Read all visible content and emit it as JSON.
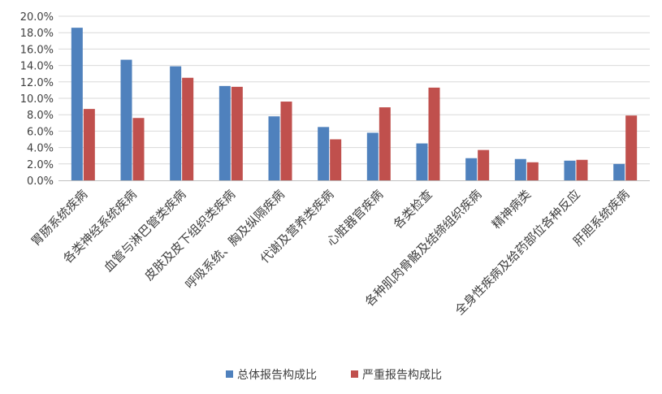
{
  "chart_data": {
    "type": "bar",
    "categories": [
      "胃肠系统疾病",
      "各类神经系统疾病",
      "血管与淋巴管类疾病",
      "皮肤及皮下组织类疾病",
      "呼吸系统、胸及纵隔疾病",
      "代谢及营养类疾病",
      "心脏器官疾病",
      "各类检查",
      "各种肌肉骨骼及结缔组织疾病",
      "精神病类",
      "全身性疾病及给药部位各种反应",
      "肝胆系统疾病"
    ],
    "series": [
      {
        "name": "总体报告构成比",
        "color": "#4F81BD",
        "values": [
          18.6,
          14.7,
          13.9,
          11.5,
          7.8,
          6.5,
          5.8,
          4.5,
          2.7,
          2.6,
          2.4,
          2.0
        ]
      },
      {
        "name": "严重报告构成比",
        "color": "#C0504D",
        "values": [
          8.7,
          7.6,
          12.5,
          11.4,
          9.6,
          5.0,
          8.9,
          11.3,
          3.7,
          2.2,
          2.5,
          7.9
        ]
      }
    ],
    "ylim": [
      0,
      20
    ],
    "yticks": [
      "0.0%",
      "2.0%",
      "4.0%",
      "6.0%",
      "8.0%",
      "10.0%",
      "12.0%",
      "14.0%",
      "16.0%",
      "18.0%",
      "20.0%"
    ],
    "ytick_values": [
      0,
      2,
      4,
      6,
      8,
      10,
      12,
      14,
      16,
      18,
      20
    ],
    "title": "",
    "xlabel": "",
    "ylabel": "",
    "grid": true,
    "legend_position": "bottom",
    "gridline_color": "#D9D9D9"
  }
}
